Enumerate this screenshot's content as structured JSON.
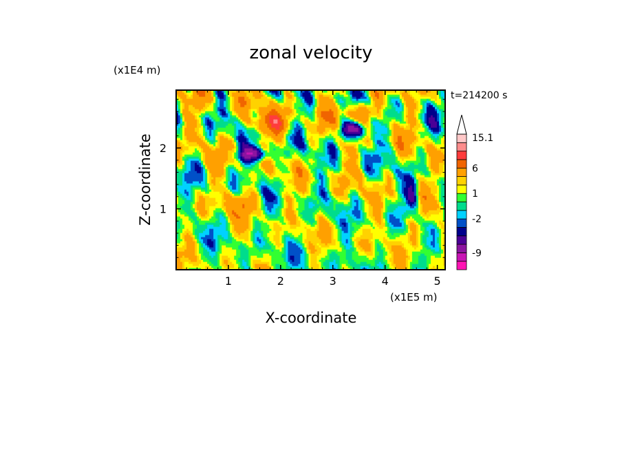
{
  "chart_data": {
    "type": "heatmap",
    "title": "zonal velocity",
    "xlabel": "X-coordinate",
    "ylabel": "Z-coordinate",
    "x_scale_label": "(x1E5 m)",
    "y_scale_label": "(x1E4 m)",
    "time_label": "t=214200 s",
    "xlim": [
      0,
      5.15
    ],
    "ylim": [
      0,
      2.95
    ],
    "x_ticks": [
      "1",
      "2",
      "3",
      "4",
      "5"
    ],
    "y_ticks": [
      "1",
      "2"
    ],
    "colorbar": {
      "levels": [
        -13,
        -11,
        -9,
        -7,
        -5,
        -3,
        -2,
        -1,
        0,
        1,
        2,
        3,
        6,
        9,
        12,
        15.1
      ],
      "tick_labels": [
        "15.1",
        "6",
        "1",
        "-2",
        "-9"
      ],
      "colors": [
        "#ff14b4",
        "#c814b4",
        "#8c14a0",
        "#4b0096",
        "#00008c",
        "#0050c8",
        "#00d2ff",
        "#00dc8c",
        "#32ff32",
        "#ffff00",
        "#ffd200",
        "#ffa000",
        "#f06400",
        "#ff3c3c",
        "#ff8c8c",
        "#ffc8c8"
      ],
      "extend": "max"
    }
  }
}
